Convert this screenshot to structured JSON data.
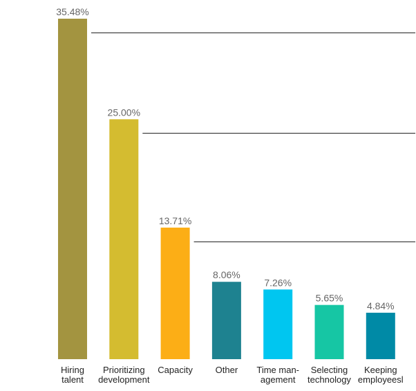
{
  "chart_data": {
    "type": "bar",
    "categories": [
      [
        "Hiring",
        "talent"
      ],
      [
        "Prioritizing",
        "development"
      ],
      [
        "Capacity"
      ],
      [
        "Other"
      ],
      [
        "Time man-",
        "agement"
      ],
      [
        "Selecting",
        "technology"
      ],
      [
        "Keeping",
        "employeesl"
      ]
    ],
    "values": [
      35.48,
      25.0,
      13.71,
      8.06,
      7.26,
      5.65,
      4.84
    ],
    "value_labels": [
      "35.48%",
      "25.00%",
      "13.71%",
      "8.06%",
      "7.26%",
      "5.65%",
      "4.84%"
    ],
    "colors": [
      "#A39440",
      "#D4BC30",
      "#FCAE16",
      "#1E8290",
      "#00C6F0",
      "#16C6A4",
      "#008AA6"
    ],
    "ylim": [
      0,
      35.48
    ],
    "reference_lines": [
      35.48,
      25.0,
      13.71
    ],
    "reference_line_color": "#222222",
    "grid": false,
    "legend": "none"
  }
}
